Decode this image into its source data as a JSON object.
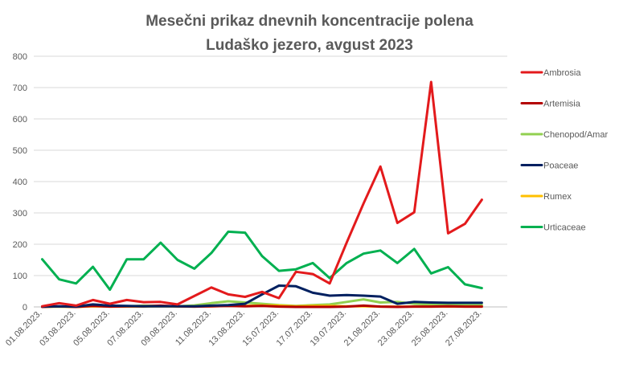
{
  "chart_data": {
    "type": "line",
    "title": "Mesečni prikaz dnevnih koncentracije polena",
    "subtitle": "Ludaško jezero, avgust 2023",
    "xlabel": "",
    "ylabel": "",
    "ylim": [
      0,
      800
    ],
    "yticks": [
      0,
      100,
      200,
      300,
      400,
      500,
      600,
      700,
      800
    ],
    "grid": true,
    "legend_position": "right",
    "categories": [
      "01.08.2023.",
      "02.08.2023.",
      "03.08.2023.",
      "04.08.2023.",
      "05.08.2023.",
      "06.08.2023.",
      "07.08.2023.",
      "08.08.2023.",
      "09.08.2023.",
      "10.08.2023.",
      "11.08.2023.",
      "12.08.2023.",
      "13.08.2023.",
      "14.08.2023.",
      "15.07.2023.",
      "16.07.2023.",
      "17.07.2023.",
      "18.07.2023.",
      "19.07.2023.",
      "20.08.2023.",
      "21.08.2023.",
      "22.08.2023.",
      "23.08.2023.",
      "24.08.2023.",
      "25.08.2023.",
      "26.08.2023.",
      "27.08.2023.",
      "28.08.2023."
    ],
    "visible_tick_labels": [
      "01.08.2023.",
      "03.08.2023.",
      "05.08.2023.",
      "07.08.2023.",
      "09.08.2023.",
      "11.08.2023.",
      "13.08.2023.",
      "15.07.2023.",
      "17.07.2023.",
      "19.07.2023.",
      "21.08.2023.",
      "23.08.2023.",
      "25.08.2023.",
      "27.08.2023."
    ],
    "series": [
      {
        "name": "Ambrosia",
        "color": "#e31a1c",
        "values": [
          2,
          12,
          4,
          22,
          10,
          22,
          15,
          16,
          8,
          35,
          62,
          40,
          32,
          48,
          28,
          112,
          105,
          75,
          205,
          330,
          448,
          268,
          302,
          718,
          235,
          265,
          342,
          null
        ]
      },
      {
        "name": "Artemisia",
        "color": "#b30000",
        "values": [
          0,
          2,
          0,
          3,
          1,
          2,
          2,
          4,
          2,
          1,
          2,
          3,
          2,
          3,
          1,
          0,
          0,
          0,
          1,
          4,
          1,
          0,
          1,
          1,
          2,
          1,
          1,
          null
        ]
      },
      {
        "name": "Chenopod/Amar",
        "color": "#92d050",
        "values": [
          0,
          1,
          0,
          3,
          2,
          2,
          4,
          3,
          2,
          5,
          12,
          18,
          14,
          10,
          6,
          3,
          6,
          8,
          16,
          24,
          14,
          16,
          10,
          8,
          8,
          6,
          6,
          null
        ]
      },
      {
        "name": "Poaceae",
        "color": "#002060",
        "values": [
          1,
          2,
          1,
          8,
          4,
          3,
          2,
          2,
          2,
          2,
          4,
          6,
          10,
          40,
          68,
          66,
          45,
          36,
          38,
          36,
          33,
          10,
          16,
          14,
          13,
          13,
          13,
          null
        ]
      },
      {
        "name": "Rumex",
        "color": "#ffc000",
        "values": [
          1,
          1,
          0,
          2,
          1,
          1,
          1,
          2,
          1,
          1,
          2,
          3,
          3,
          5,
          4,
          2,
          3,
          3,
          2,
          2,
          1,
          1,
          1,
          1,
          1,
          1,
          1,
          null
        ]
      },
      {
        "name": "Urticaceae",
        "color": "#00b050",
        "values": [
          152,
          88,
          75,
          128,
          55,
          152,
          152,
          205,
          150,
          122,
          172,
          240,
          237,
          162,
          115,
          120,
          140,
          92,
          140,
          170,
          180,
          140,
          185,
          107,
          127,
          72,
          60,
          null
        ]
      }
    ]
  }
}
